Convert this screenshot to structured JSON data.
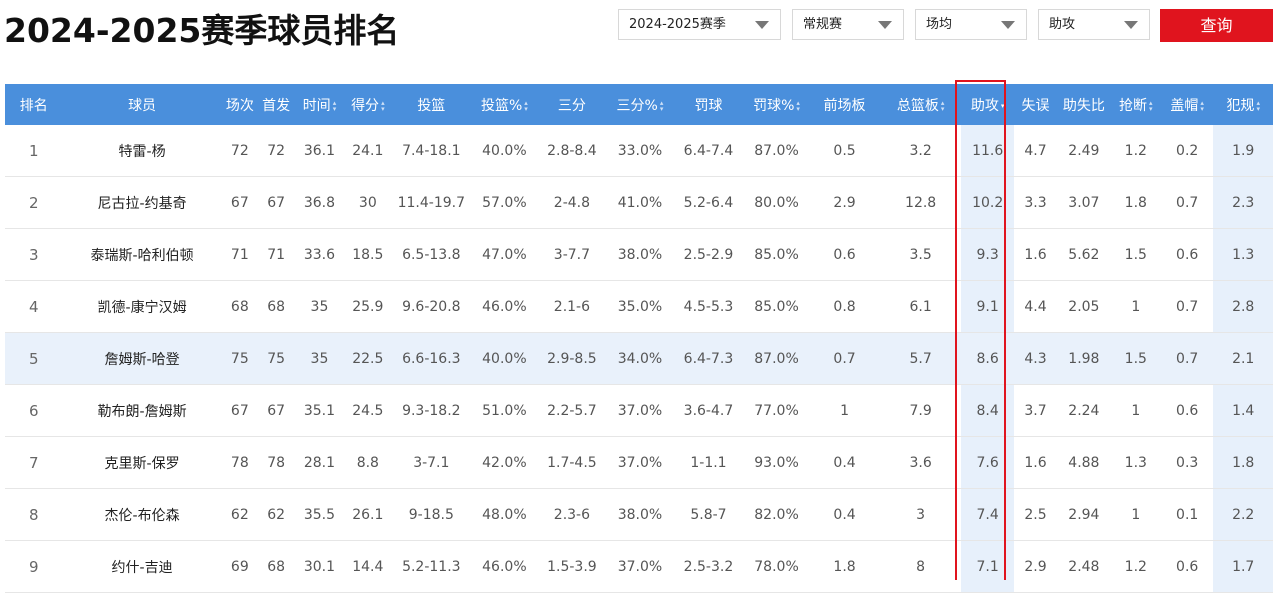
{
  "page": {
    "title": "2024-2025赛季球员排名"
  },
  "filters": {
    "season": "2024-2025赛季",
    "type": "常规赛",
    "mode": "场均",
    "stat": "助攻",
    "query_label": "查询"
  },
  "table": {
    "headers": [
      "排名",
      "球员",
      "场次",
      "首发",
      "时间",
      "得分",
      "投篮",
      "投篮%",
      "三分",
      "三分%",
      "罚球",
      "罚球%",
      "前场板",
      "总篮板",
      "助攻",
      "失误",
      "助失比",
      "抢断",
      "盖帽",
      "犯规"
    ],
    "rows": [
      [
        "1",
        "特雷-杨",
        "72",
        "72",
        "36.1",
        "24.1",
        "7.4-18.1",
        "40.0%",
        "2.8-8.4",
        "33.0%",
        "6.4-7.4",
        "87.0%",
        "0.5",
        "3.2",
        "11.6",
        "4.7",
        "2.49",
        "1.2",
        "0.2",
        "1.9"
      ],
      [
        "2",
        "尼古拉-约基奇",
        "67",
        "67",
        "36.8",
        "30",
        "11.4-19.7",
        "57.0%",
        "2-4.8",
        "41.0%",
        "5.2-6.4",
        "80.0%",
        "2.9",
        "12.8",
        "10.2",
        "3.3",
        "3.07",
        "1.8",
        "0.7",
        "2.3"
      ],
      [
        "3",
        "泰瑞斯-哈利伯顿",
        "71",
        "71",
        "33.6",
        "18.5",
        "6.5-13.8",
        "47.0%",
        "3-7.7",
        "38.0%",
        "2.5-2.9",
        "85.0%",
        "0.6",
        "3.5",
        "9.3",
        "1.6",
        "5.62",
        "1.5",
        "0.6",
        "1.3"
      ],
      [
        "4",
        "凯德-康宁汉姆",
        "68",
        "68",
        "35",
        "25.9",
        "9.6-20.8",
        "46.0%",
        "2.1-6",
        "35.0%",
        "4.5-5.3",
        "85.0%",
        "0.8",
        "6.1",
        "9.1",
        "4.4",
        "2.05",
        "1",
        "0.7",
        "2.8"
      ],
      [
        "5",
        "詹姆斯-哈登",
        "75",
        "75",
        "35",
        "22.5",
        "6.6-16.3",
        "40.0%",
        "2.9-8.5",
        "34.0%",
        "6.4-7.3",
        "87.0%",
        "0.7",
        "5.7",
        "8.6",
        "4.3",
        "1.98",
        "1.5",
        "0.7",
        "2.1"
      ],
      [
        "6",
        "勒布朗-詹姆斯",
        "67",
        "67",
        "35.1",
        "24.5",
        "9.3-18.2",
        "51.0%",
        "2.2-5.7",
        "37.0%",
        "3.6-4.7",
        "77.0%",
        "1",
        "7.9",
        "8.4",
        "3.7",
        "2.24",
        "1",
        "0.6",
        "1.4"
      ],
      [
        "7",
        "克里斯-保罗",
        "78",
        "78",
        "28.1",
        "8.8",
        "3-7.1",
        "42.0%",
        "1.7-4.5",
        "37.0%",
        "1-1.1",
        "93.0%",
        "0.4",
        "3.6",
        "7.6",
        "1.6",
        "4.88",
        "1.3",
        "0.3",
        "1.8"
      ],
      [
        "8",
        "杰伦-布伦森",
        "62",
        "62",
        "35.5",
        "26.1",
        "9-18.5",
        "48.0%",
        "2.3-6",
        "38.0%",
        "5.8-7",
        "82.0%",
        "0.4",
        "3",
        "7.4",
        "2.5",
        "2.94",
        "1",
        "0.1",
        "2.2"
      ],
      [
        "9",
        "约什-吉迪",
        "69",
        "68",
        "30.1",
        "14.4",
        "5.2-11.3",
        "46.0%",
        "1.5-3.9",
        "37.0%",
        "2.5-3.2",
        "78.0%",
        "1.8",
        "8",
        "7.1",
        "2.9",
        "2.48",
        "1.2",
        "0.6",
        "1.7"
      ]
    ]
  }
}
